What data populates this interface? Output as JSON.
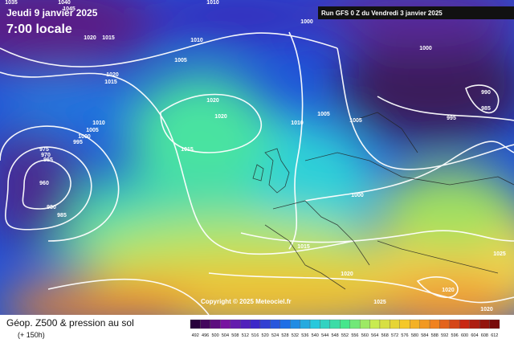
{
  "header": {
    "date": "Jeudi 9 janvier 2025",
    "time": "7:00 locale",
    "run": "Run GFS 0 Z du Vendredi 3 janvier 2025"
  },
  "isobar_labels": [
    1035,
    1040,
    1045,
    1010,
    1020,
    1015,
    1000,
    1005,
    1010,
    1000,
    1020,
    1015,
    1020,
    1020,
    990,
    985,
    1005,
    1005,
    995,
    1010,
    1010,
    1005,
    1000,
    995,
    1015,
    975,
    970,
    965,
    960,
    980,
    985,
    1000,
    1015,
    1025,
    1020,
    1025,
    1020,
    1020
  ],
  "copyright": "Copyright © 2025 Meteociel.fr",
  "footer": {
    "title": "Géop. Z500 & pression au sol",
    "lead": "(+ 150h)"
  },
  "scale": {
    "labels": [
      492,
      496,
      500,
      504,
      508,
      512,
      516,
      520,
      524,
      528,
      532,
      536,
      540,
      544,
      548,
      552,
      556,
      560,
      564,
      568,
      572,
      576,
      580,
      584,
      588,
      592,
      596,
      600,
      604,
      608,
      612
    ]
  }
}
